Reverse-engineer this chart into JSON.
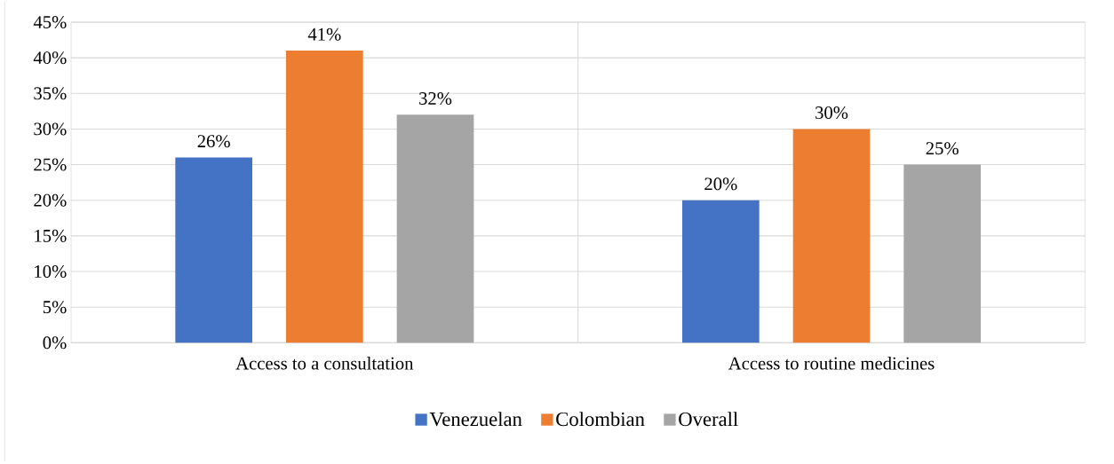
{
  "chart_data": {
    "type": "bar",
    "categories": [
      "Access to a consultation",
      "Access to routine medicines"
    ],
    "series": [
      {
        "name": "Venezuelan",
        "color": "#4472c4",
        "values": [
          26,
          20
        ],
        "value_labels": [
          "26%",
          "20%"
        ]
      },
      {
        "name": "Colombian",
        "color": "#ed7d31",
        "values": [
          41,
          30
        ],
        "value_labels": [
          "41%",
          "30%"
        ]
      },
      {
        "name": "Overall",
        "color": "#a5a5a5",
        "values": [
          32,
          25
        ],
        "value_labels": [
          "32%",
          "25%"
        ]
      }
    ],
    "ylim": [
      0,
      45
    ],
    "yticks": [
      {
        "value": 0,
        "label": "0%"
      },
      {
        "value": 5,
        "label": "5%"
      },
      {
        "value": 10,
        "label": "10%"
      },
      {
        "value": 15,
        "label": "15%"
      },
      {
        "value": 20,
        "label": "20%"
      },
      {
        "value": 25,
        "label": "25%"
      },
      {
        "value": 30,
        "label": "30%"
      },
      {
        "value": 35,
        "label": "35%"
      },
      {
        "value": 40,
        "label": "40%"
      },
      {
        "value": 45,
        "label": "45%"
      }
    ],
    "grid": "y",
    "legend": "bottom"
  }
}
